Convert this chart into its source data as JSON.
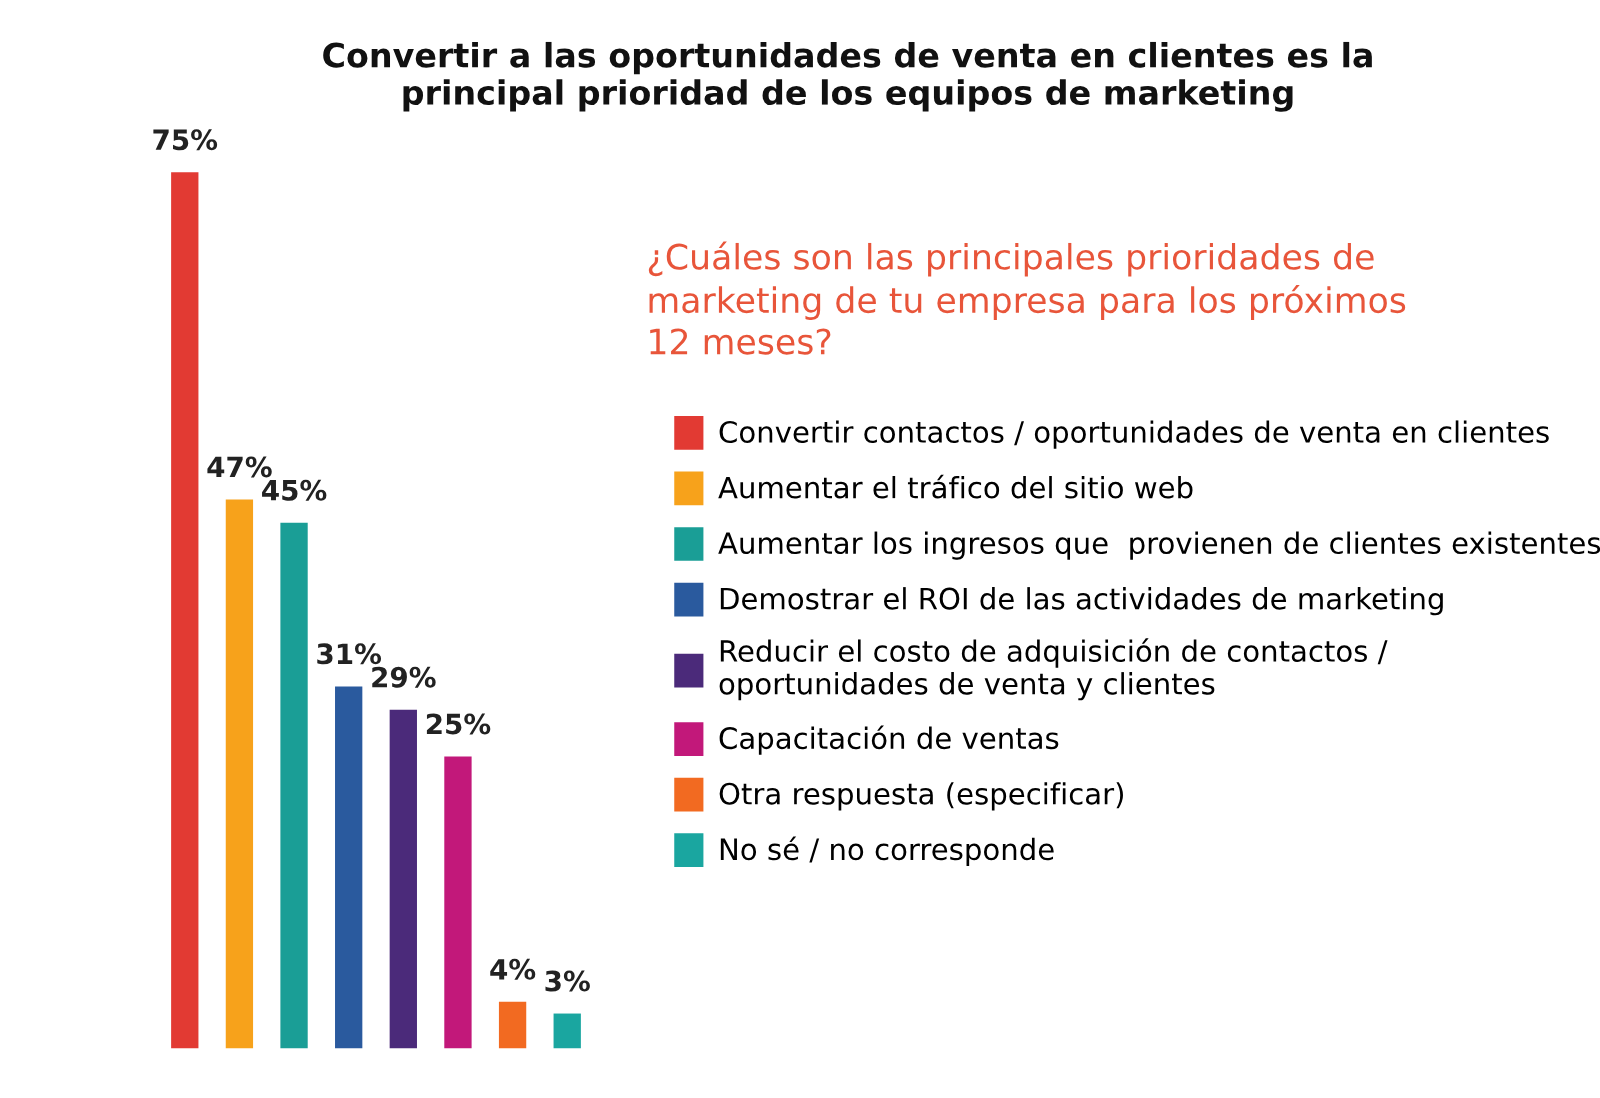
{
  "chart_data": {
    "type": "bar",
    "title": "Convertir a las oportunidades de venta en clientes es la\nprincipal prioridad de los equipos de marketing",
    "subtitle": "¿Cuáles son las principales prioridades de\nmarketing de tu empresa para los próximos\n12 meses?",
    "categories": [
      null,
      null,
      null,
      null,
      null,
      null,
      null,
      null
    ],
    "series": [
      {
        "name": "Convertir contactos / oportunidades de venta en clientes",
        "color": "#e23a33",
        "values": [
          75,
          null,
          null,
          null,
          null,
          null,
          null,
          null
        ],
        "value_labels": [
          "75%",
          null,
          null,
          null,
          null,
          null,
          null,
          null
        ]
      },
      {
        "name": "Aumentar el tráfico del sitio web",
        "color": "#f7a21b",
        "values": [
          null,
          47,
          null,
          null,
          null,
          null,
          null,
          null
        ],
        "value_labels": [
          null,
          "47%",
          null,
          null,
          null,
          null,
          null,
          null
        ]
      },
      {
        "name": "Aumentar los ingresos que  provienen de clientes existentes",
        "color": "#1a9e96",
        "values": [
          null,
          null,
          45,
          null,
          null,
          null,
          null,
          null
        ],
        "value_labels": [
          null,
          null,
          "45%",
          null,
          null,
          null,
          null,
          null
        ]
      },
      {
        "name": "Demostrar el ROI de las actividades de marketing",
        "color": "#2a5a9e",
        "values": [
          null,
          null,
          null,
          31,
          null,
          null,
          null,
          null
        ],
        "value_labels": [
          null,
          null,
          null,
          "31%",
          null,
          null,
          null,
          null
        ]
      },
      {
        "name": "Reducir el costo de adquisición de contactos /\noportunidades de venta y clientes",
        "color": "#4b2a7a",
        "values": [
          null,
          null,
          null,
          null,
          29,
          null,
          null,
          null
        ],
        "value_labels": [
          null,
          null,
          null,
          null,
          "29%",
          null,
          null,
          null
        ]
      },
      {
        "name": "Capacitación de ventas",
        "color": "#c2187a",
        "values": [
          null,
          null,
          null,
          null,
          null,
          25,
          null,
          null
        ],
        "value_labels": [
          null,
          null,
          null,
          null,
          null,
          "25%",
          null,
          null
        ]
      },
      {
        "name": "Otra respuesta (especificar)",
        "color": "#f26a21",
        "values": [
          null,
          null,
          null,
          null,
          null,
          null,
          4,
          null
        ],
        "value_labels": [
          null,
          null,
          null,
          null,
          null,
          null,
          "4%",
          null
        ]
      },
      {
        "name": "No sé / no corresponde",
        "color": "#1aa6a0",
        "values": [
          null,
          null,
          null,
          null,
          null,
          null,
          null,
          3
        ],
        "value_labels": [
          null,
          null,
          null,
          null,
          null,
          null,
          null,
          "3%"
        ]
      }
    ],
    "stacked": true,
    "tick_labels": false,
    "legend": "right"
  }
}
